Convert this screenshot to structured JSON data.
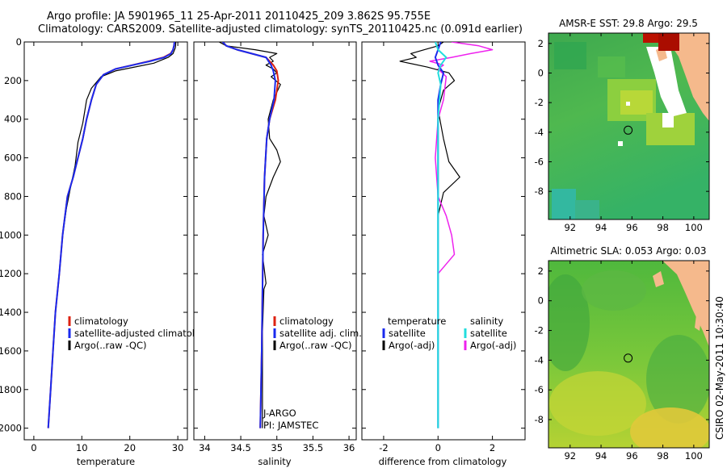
{
  "header": {
    "line1": "Argo profile: JA 5901965_11 25-Apr-2011 20110425_209 3.862S 95.755E",
    "line2": "Climatology: CARS2009. Satellite-adjusted climatology: synTS_20110425.nc (0.091d earlier)"
  },
  "footer": {
    "credit": "CSIRO 02-May-2011 10:30:40"
  },
  "colors": {
    "climatology": "#dd2211",
    "satellite": "#1a2aee",
    "argo": "#000000",
    "salinity_satellite": "#22dddd",
    "salinity_argo": "#ee22ee",
    "land": "#f5b98c"
  },
  "chart_data": [
    {
      "id": "temperature",
      "type": "line",
      "xlabel": "temperature",
      "ylabel": "",
      "xlim": [
        -2,
        32
      ],
      "ylim": [
        2060,
        0
      ],
      "xticks": [
        0,
        10,
        20,
        30
      ],
      "yticks": [
        0,
        200,
        400,
        600,
        800,
        1000,
        1200,
        1400,
        1600,
        1800,
        2000
      ],
      "legend": [
        "climatology",
        "satellite-adjusted climatology",
        "Argo(..raw -QC)"
      ],
      "series": [
        {
          "name": "climatology",
          "x": [
            29.3,
            29.2,
            29.0,
            28.5,
            27.0,
            24.0,
            20.5,
            17.0,
            14.5,
            13.0,
            12.0,
            11.0,
            10.2,
            9.2,
            8.2,
            7.0,
            6.0,
            5.3,
            4.5,
            4.0,
            3.5,
            3.0
          ],
          "y": [
            0,
            20,
            40,
            60,
            80,
            100,
            120,
            140,
            170,
            220,
            300,
            400,
            500,
            600,
            700,
            800,
            1000,
            1200,
            1400,
            1600,
            1800,
            2000
          ]
        },
        {
          "name": "satellite-adjusted climatology",
          "x": [
            29.3,
            29.2,
            29.0,
            28.6,
            27.2,
            24.2,
            20.6,
            17.0,
            14.5,
            13.0,
            12.0,
            11.0,
            10.2,
            9.2,
            8.2,
            7.0,
            6.0,
            5.3,
            4.5,
            4.0,
            3.5,
            3.0
          ],
          "y": [
            0,
            20,
            40,
            60,
            80,
            100,
            120,
            140,
            170,
            220,
            300,
            400,
            500,
            600,
            700,
            800,
            1000,
            1200,
            1400,
            1600,
            1800,
            2000
          ]
        },
        {
          "name": "Argo(..raw -QC)",
          "x": [
            29.6,
            29.5,
            29.0,
            28.0,
            25.0,
            21.0,
            17.0,
            14.0,
            12.0,
            11.0,
            10.2,
            9.2,
            8.6,
            7.6,
            6.8,
            6.0,
            5.3,
            4.5,
            4.0,
            3.5,
            3.0
          ],
          "y": [
            0,
            30,
            60,
            80,
            110,
            130,
            150,
            180,
            240,
            300,
            420,
            520,
            640,
            760,
            860,
            1000,
            1200,
            1400,
            1600,
            1800,
            2000
          ]
        }
      ]
    },
    {
      "id": "salinity",
      "type": "line",
      "xlabel": "salinity",
      "ylabel": "",
      "xlim": [
        33.85,
        36.1
      ],
      "ylim": [
        2060,
        0
      ],
      "xticks": [
        34,
        34.5,
        35,
        35.5,
        36
      ],
      "legend": [
        "climatology",
        "satellite adj. clim.",
        "Argo(..raw -QC)"
      ],
      "annotations": [
        "J-ARGO",
        "PI: JAMSTEC"
      ],
      "series": [
        {
          "name": "climatology",
          "x": [
            34.25,
            34.3,
            34.45,
            34.65,
            34.85,
            34.95,
            35.0,
            35.02,
            34.98,
            34.9,
            34.86,
            34.83,
            34.81,
            34.8,
            34.79,
            34.78,
            34.77
          ],
          "y": [
            0,
            20,
            40,
            60,
            80,
            120,
            150,
            200,
            300,
            400,
            500,
            700,
            1000,
            1300,
            1600,
            1800,
            2000
          ]
        },
        {
          "name": "satellite adj. clim.",
          "x": [
            34.25,
            34.3,
            34.45,
            34.65,
            34.85,
            34.92,
            34.95,
            34.98,
            34.96,
            34.9,
            34.86,
            34.83,
            34.81,
            34.8,
            34.79,
            34.78,
            34.77
          ],
          "y": [
            0,
            20,
            40,
            60,
            80,
            120,
            150,
            200,
            300,
            400,
            500,
            700,
            1000,
            1300,
            1600,
            1800,
            2000
          ]
        },
        {
          "name": "Argo(..raw -QC)",
          "x": [
            34.2,
            34.3,
            34.7,
            35.0,
            34.9,
            34.95,
            34.85,
            34.95,
            35.0,
            34.92,
            35.05,
            34.95,
            34.88,
            34.9,
            35.0,
            35.05,
            34.95,
            34.85,
            34.82,
            34.88,
            34.8,
            34.85,
            34.82,
            34.8,
            34.8
          ],
          "y": [
            0,
            20,
            40,
            60,
            80,
            100,
            120,
            140,
            160,
            180,
            220,
            300,
            400,
            500,
            560,
            620,
            700,
            800,
            900,
            1000,
            1100,
            1250,
            1280,
            1500,
            2000
          ]
        }
      ]
    },
    {
      "id": "difference",
      "type": "line",
      "xlabel": "difference from climatology",
      "ylabel": "",
      "xlim": [
        -2.8,
        3.2
      ],
      "ylim": [
        2060,
        0
      ],
      "xticks": [
        -2,
        0,
        2
      ],
      "legend_titles": [
        "temperature",
        "salinity"
      ],
      "legend": [
        "satellite",
        "Argo(-adj)",
        "satellite",
        "Argo(-adj)"
      ],
      "series": [
        {
          "name": "temperature satellite",
          "x": [
            0.1,
            0.0,
            -0.1,
            0.0,
            0.2,
            0.1,
            0.0,
            0.0,
            0.0,
            0.0,
            0.0
          ],
          "y": [
            0,
            40,
            80,
            120,
            160,
            220,
            300,
            500,
            1000,
            1500,
            2000
          ]
        },
        {
          "name": "temperature Argo(-adj)",
          "x": [
            0.2,
            0.0,
            -0.5,
            -1.0,
            -0.8,
            -1.4,
            -0.4,
            0.4,
            0.6,
            0.2,
            0.0,
            0.2,
            0.4,
            0.8,
            0.2,
            0.0,
            0.0,
            0.0
          ],
          "y": [
            0,
            20,
            40,
            60,
            80,
            100,
            130,
            160,
            200,
            250,
            350,
            500,
            620,
            700,
            780,
            900,
            1200,
            1450
          ]
        },
        {
          "name": "salinity satellite",
          "x": [
            -0.1,
            0.0,
            0.3,
            0.1,
            0.0,
            0.1,
            0.0,
            0.0,
            0.0,
            0.0
          ],
          "y": [
            0,
            40,
            80,
            120,
            160,
            220,
            400,
            800,
            1400,
            2000
          ]
        },
        {
          "name": "salinity Argo(-adj)",
          "x": [
            0.5,
            1.5,
            2.0,
            1.2,
            0.5,
            -0.3,
            0.2,
            0.0,
            0.3,
            0.2,
            0.0,
            -0.1,
            0.0,
            0.3,
            0.5,
            0.6,
            0.0,
            0.0,
            0.0,
            0.0
          ],
          "y": [
            0,
            20,
            40,
            60,
            80,
            100,
            120,
            140,
            180,
            300,
            400,
            600,
            800,
            900,
            1000,
            1100,
            1200,
            1300,
            1400,
            1450
          ]
        }
      ]
    },
    {
      "id": "sst_map",
      "type": "heatmap",
      "title": "AMSR-E SST: 29.8  Argo: 29.5",
      "xlim": [
        90.6,
        101.0
      ],
      "ylim": [
        -9.9,
        2.7
      ],
      "xticks": [
        92,
        94,
        96,
        98,
        100
      ],
      "yticks": [
        2,
        0,
        -2,
        -4,
        -6,
        -8
      ],
      "argo_position": {
        "lon": 95.755,
        "lat": -3.862
      }
    },
    {
      "id": "sla_map",
      "type": "heatmap",
      "title": "Altimetric SLA: 0.053  Argo: 0.03",
      "xlim": [
        90.6,
        101.0
      ],
      "ylim": [
        -9.9,
        2.7
      ],
      "xticks": [
        92,
        94,
        96,
        98,
        100
      ],
      "yticks": [
        2,
        0,
        -2,
        -4,
        -6,
        -8
      ],
      "argo_position": {
        "lon": 95.755,
        "lat": -3.862
      }
    }
  ]
}
